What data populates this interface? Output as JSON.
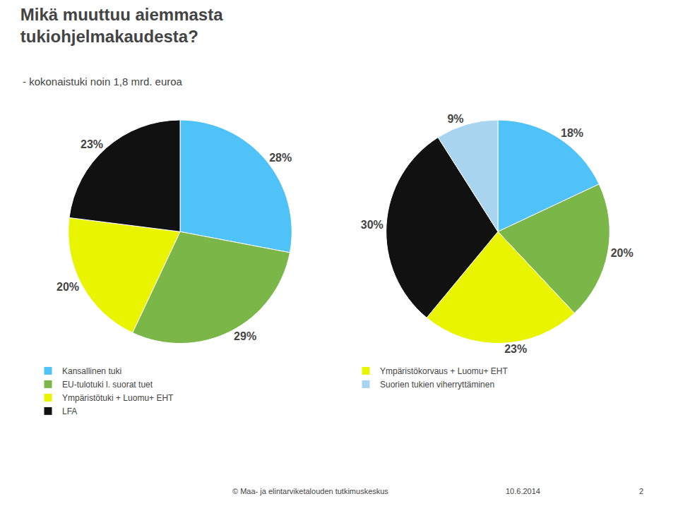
{
  "title": "Mikä muuttuu aiemmasta\ntukiohjelmakaudesta?",
  "subtitle": "- kokonaistuki noin 1,8 mrd. euroa",
  "annotations": [
    "© Maa- ja elintarviketalouden tutkimuskeskus",
    "10.6.2014",
    "2"
  ],
  "chart_data": [
    {
      "type": "pie",
      "categories": [
        "Kansallinen tuki",
        "EU-tulotuki l. suorat tuet",
        "Ympäristötuki + Luomu+ EHT",
        "LFA"
      ],
      "values": [
        28,
        29,
        20,
        23
      ],
      "value_labels": [
        "28%",
        "29%",
        "20%",
        "23%"
      ],
      "colors": [
        "#4fc3f7",
        "#7ab648",
        "#e8f400",
        "#111111"
      ],
      "data_labels": true,
      "legend": "bottom"
    },
    {
      "type": "pie",
      "categories": [
        "Kansallinen tuki",
        "EU-tulotuki l. suorat tuet",
        "Ympäristökorvaus + Luomu+ EHT",
        "LFA",
        "Suorien tukien viherryttäminen"
      ],
      "values": [
        18,
        20,
        23,
        30,
        9
      ],
      "value_labels": [
        "18%",
        "20%",
        "23%",
        "30%",
        "9%"
      ],
      "colors": [
        "#4fc3f7",
        "#7ab648",
        "#e8f400",
        "#111111",
        "#a8d4f0"
      ],
      "data_labels": true,
      "legend": "bottom"
    }
  ]
}
